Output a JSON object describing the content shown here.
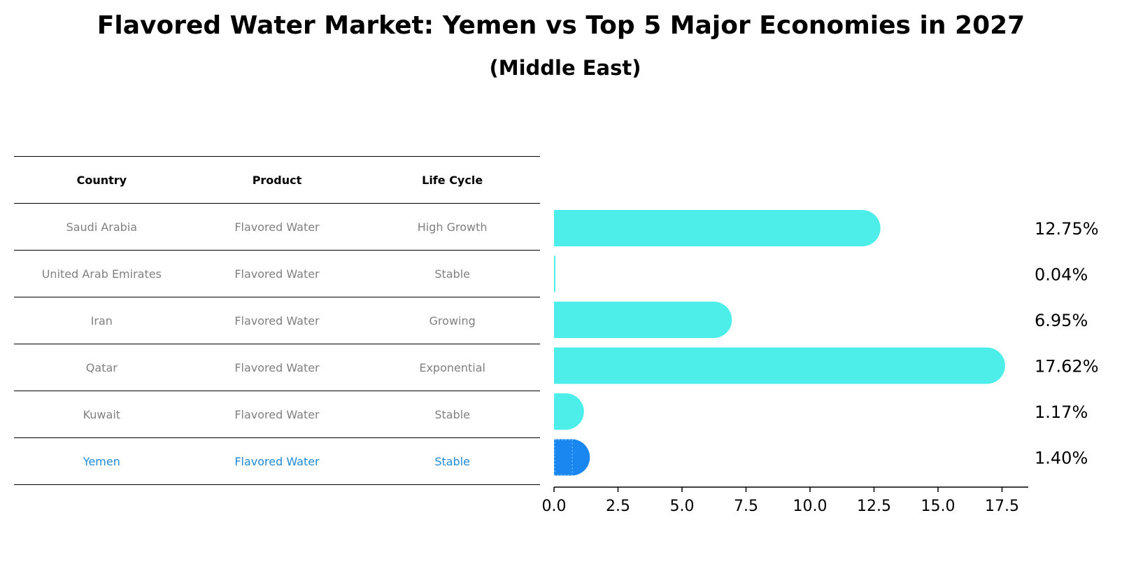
{
  "title": "Flavored Water Market: Yemen vs Top 5 Major Economies in 2027",
  "subtitle": "(Middle East)",
  "table": {
    "headers": [
      "Country",
      "Product",
      "Life Cycle"
    ],
    "rows": [
      [
        "Saudi Arabia",
        "Flavored Water",
        "High Growth"
      ],
      [
        "United Arab Emirates",
        "Flavored Water",
        "Stable"
      ],
      [
        "Iran",
        "Flavored Water",
        "Growing"
      ],
      [
        "Qatar",
        "Flavored Water",
        "Exponential"
      ],
      [
        "Kuwait",
        "Flavored Water",
        "Stable"
      ],
      [
        "Yemen",
        "Flavored Water",
        "Stable"
      ]
    ]
  },
  "colors": {
    "bar": "#4deeea",
    "highlight_bar": "#1a86f0",
    "highlight_text": "#1f8ad6",
    "row_text": "#808080"
  },
  "chart_data": {
    "type": "bar",
    "orientation": "horizontal",
    "categories": [
      "Saudi Arabia",
      "United Arab Emirates",
      "Iran",
      "Qatar",
      "Kuwait",
      "Yemen"
    ],
    "values": [
      12.75,
      0.04,
      6.95,
      17.62,
      1.17,
      1.4
    ],
    "value_labels": [
      "12.75%",
      "0.04%",
      "6.95%",
      "17.62%",
      "1.17%",
      "1.40%"
    ],
    "highlight": "Yemen",
    "xlim": [
      0,
      18.6
    ],
    "xticks": [
      0.0,
      2.5,
      5.0,
      7.5,
      10.0,
      12.5,
      15.0,
      17.5
    ],
    "xtick_labels": [
      "0.0",
      "2.5",
      "5.0",
      "7.5",
      "10.0",
      "12.5",
      "15.0",
      "17.5"
    ],
    "xlabel": "",
    "ylabel": "",
    "grid": false
  }
}
